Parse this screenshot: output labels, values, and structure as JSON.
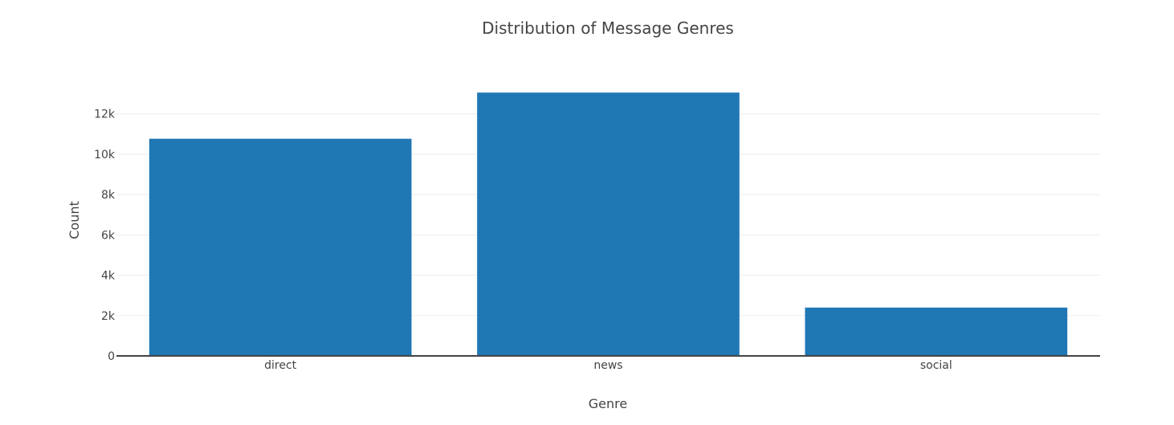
{
  "chart_data": {
    "type": "bar",
    "title": "Distribution of Message Genres",
    "xlabel": "Genre",
    "ylabel": "Count",
    "categories": [
      "direct",
      "news",
      "social"
    ],
    "values": [
      10766,
      13054,
      2396
    ],
    "ylim": [
      0,
      13741
    ],
    "yticks": [
      0,
      2000,
      4000,
      6000,
      8000,
      10000,
      12000
    ],
    "ytick_labels": [
      "0",
      "2k",
      "4k",
      "6k",
      "8k",
      "10k",
      "12k"
    ],
    "grid": true,
    "legend": "none",
    "bar_color": "#1f77b4",
    "grid_color": "#eeeeee",
    "axis_color": "#444444"
  }
}
